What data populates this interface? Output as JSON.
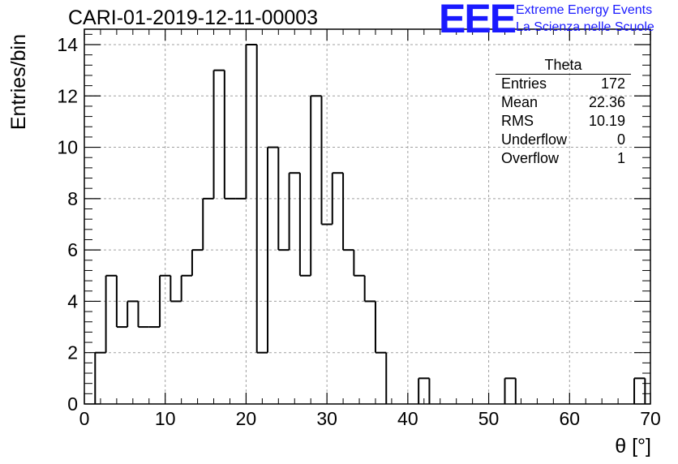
{
  "header": {
    "title": "CARI-01-2019-12-11-00003",
    "logo_text": "EEE",
    "logo_line1": "Extreme Energy Events",
    "logo_line2": "La Scienza nelle Scuole"
  },
  "stats_box": {
    "title": "Theta",
    "rows": [
      {
        "label": "Entries",
        "value": "172"
      },
      {
        "label": "Mean",
        "value": "22.36"
      },
      {
        "label": "RMS",
        "value": "10.19"
      },
      {
        "label": "Underflow",
        "value": "0"
      },
      {
        "label": "Overflow",
        "value": "1"
      }
    ]
  },
  "colors": {
    "line": "#000000",
    "grid": "#a0a0a0",
    "logo": "#1a1aff"
  },
  "chart_data": {
    "type": "bar",
    "style": "step histogram",
    "xlabel": "θ [°]",
    "ylabel": "Entries/bin",
    "xlim": [
      0,
      70
    ],
    "ylim": [
      0,
      14.6
    ],
    "x_ticks": [
      "0",
      "10",
      "20",
      "30",
      "40",
      "50",
      "60",
      "70"
    ],
    "y_ticks": [
      "0",
      "2",
      "4",
      "6",
      "8",
      "10",
      "12",
      "14"
    ],
    "grid": true,
    "legend": "none",
    "bin_width": 1.3333,
    "bin_edges_start": 1.3333,
    "values": [
      2,
      5,
      3,
      4,
      3,
      3,
      5,
      4,
      5,
      6,
      8,
      13,
      8,
      8,
      14,
      2,
      10,
      6,
      9,
      5,
      12,
      7,
      9,
      6,
      5,
      4,
      2,
      0,
      0,
      0,
      1,
      0,
      0,
      0,
      0,
      0,
      0,
      0,
      1,
      0,
      0,
      0,
      0,
      0,
      0,
      0,
      0,
      0,
      0,
      0,
      1
    ]
  }
}
